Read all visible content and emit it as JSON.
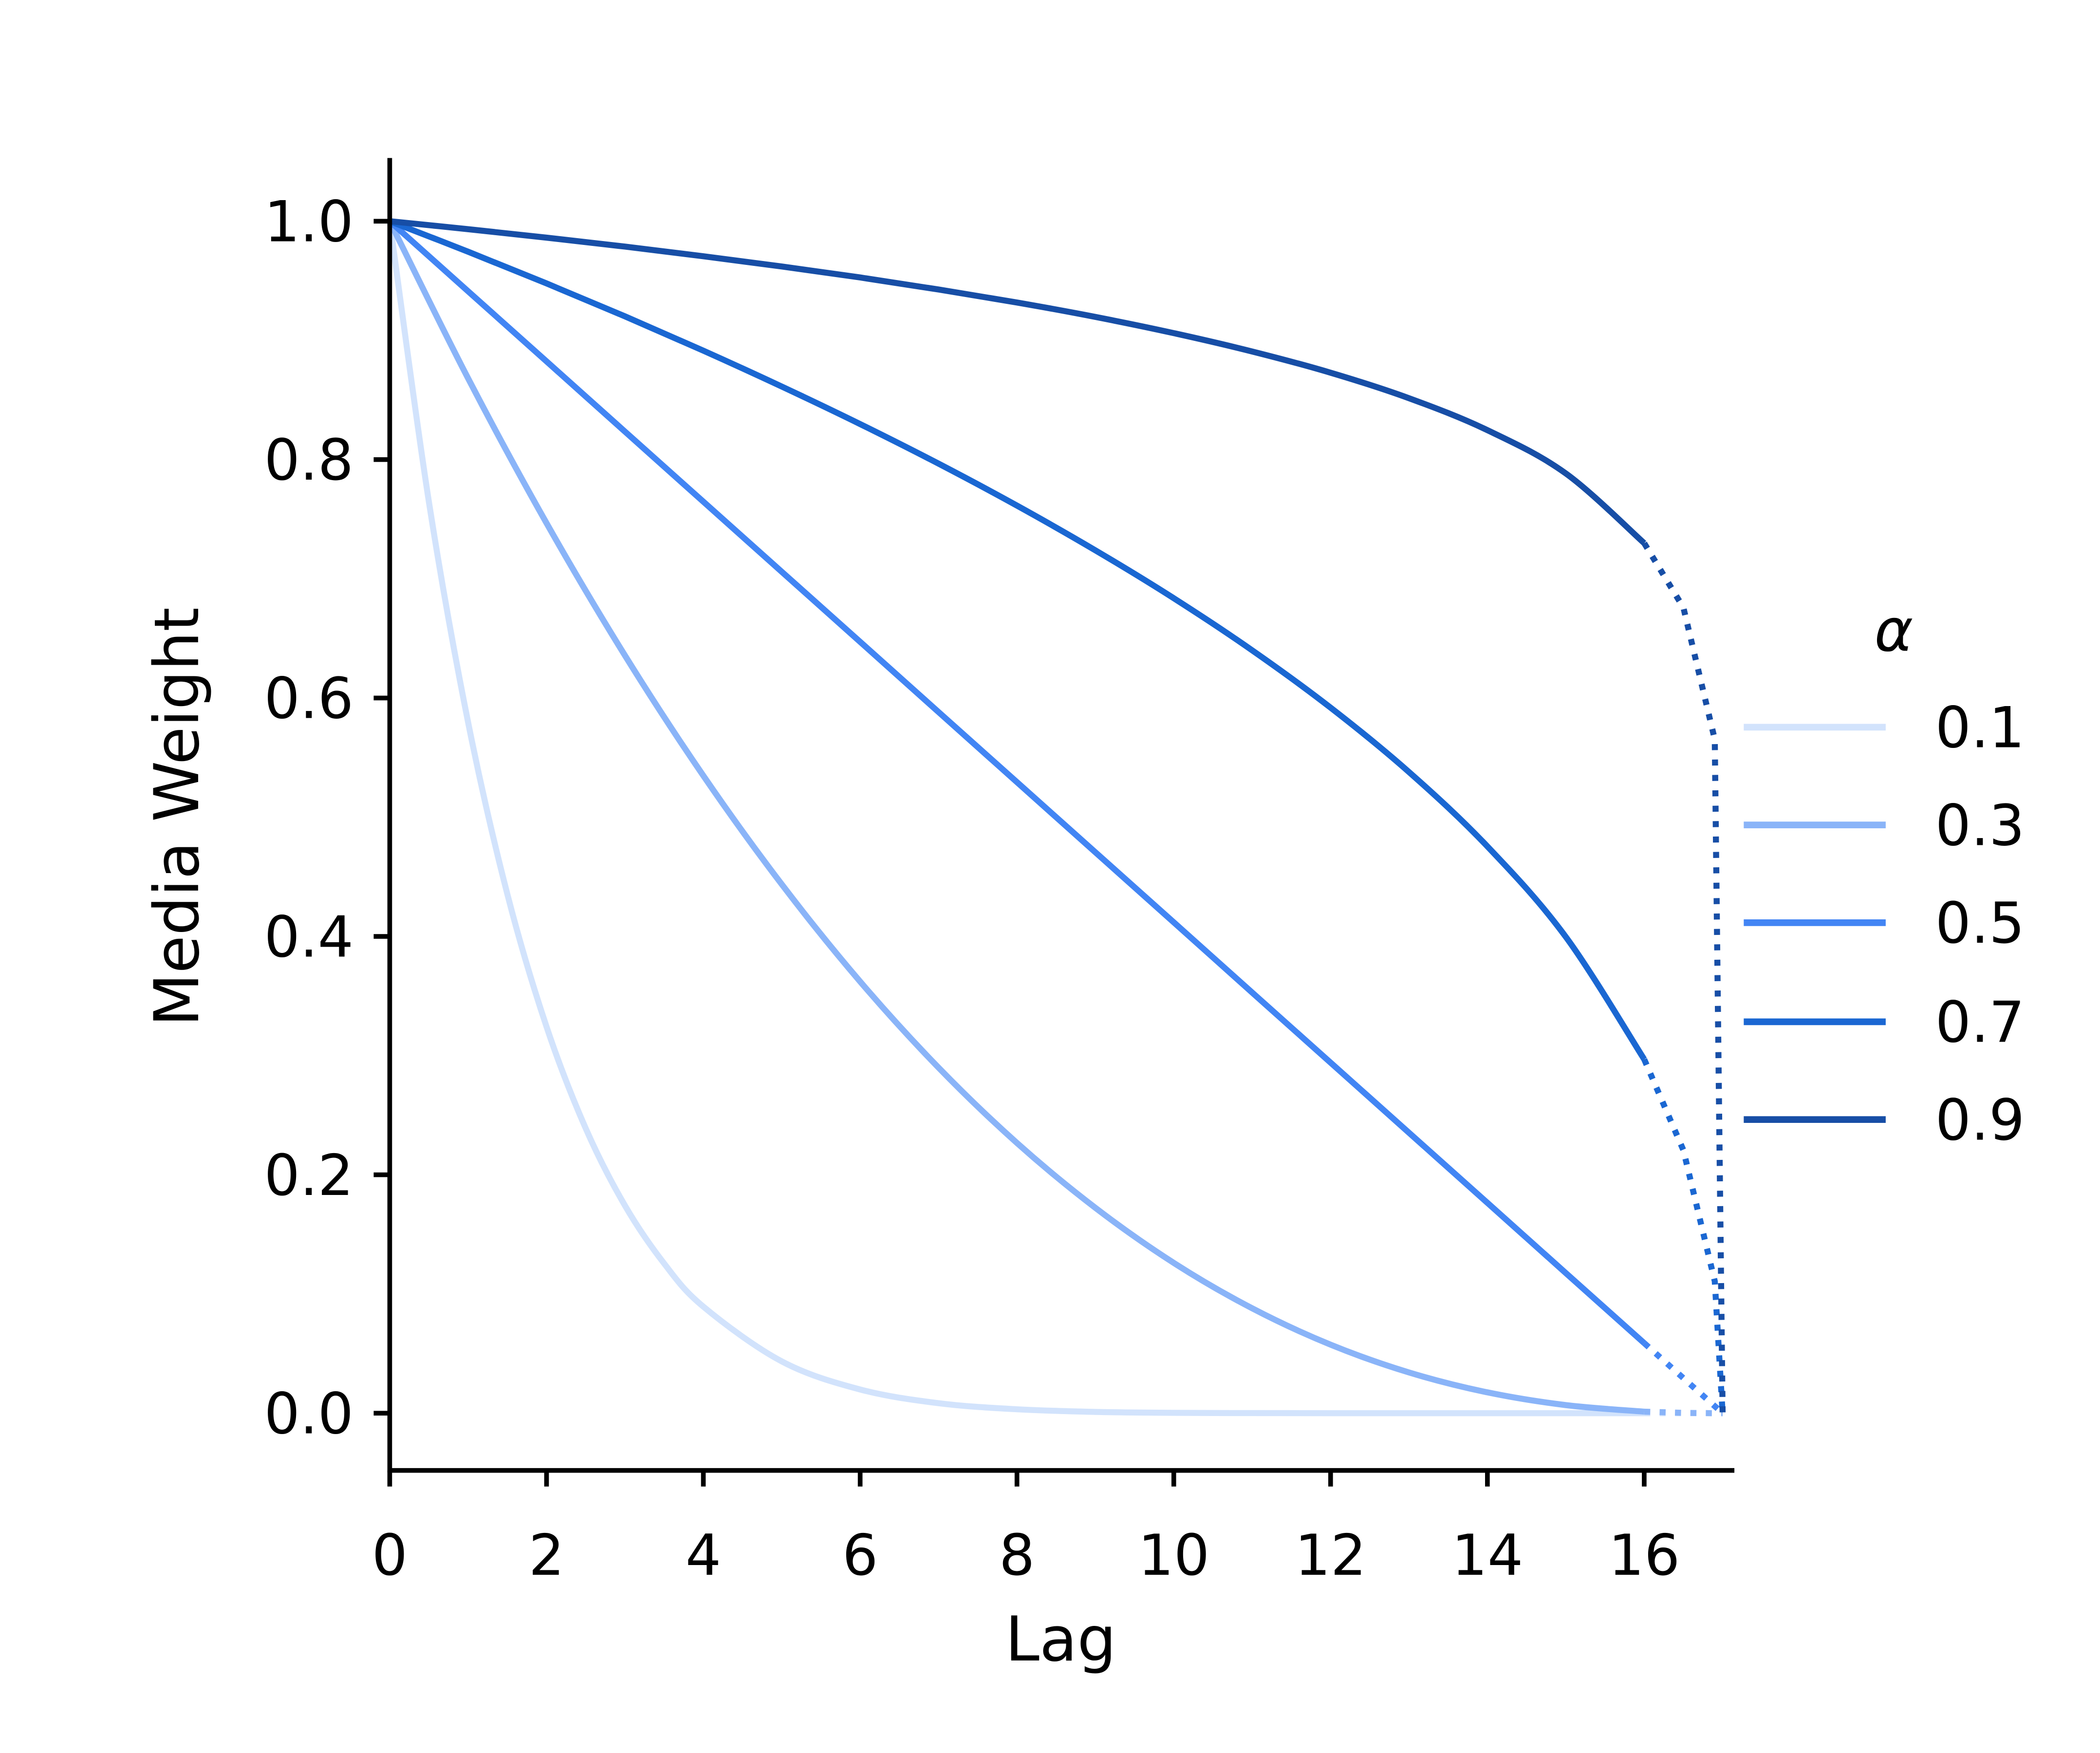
{
  "chart_data": {
    "type": "line",
    "title": "",
    "xlabel": "Lag",
    "ylabel": "Media Weight",
    "xlim": [
      0,
      17.15
    ],
    "ylim": [
      -0.048,
      1.053
    ],
    "xticks": [
      0,
      2,
      4,
      6,
      8,
      10,
      12,
      14,
      16
    ],
    "xtick_labels": [
      "0",
      "2",
      "4",
      "6",
      "8",
      "10",
      "12",
      "14",
      "16"
    ],
    "yticks": [
      0.0,
      0.2,
      0.4,
      0.6,
      0.8,
      1.0
    ],
    "ytick_labels": [
      "0.0",
      "0.2",
      "0.4",
      "0.6",
      "0.8",
      "1.0"
    ],
    "grid": false,
    "solid_until_lag": 16,
    "legend": {
      "title": "α",
      "placement": "right"
    },
    "series": [
      {
        "name": "0.1",
        "color": "#d2e3fc",
        "points": [
          [
            0,
            1
          ],
          [
            0.5,
            0.7644
          ],
          [
            1,
            0.5795
          ],
          [
            1.5,
            0.4355
          ],
          [
            2,
            0.3242
          ],
          [
            2.5,
            0.2389
          ],
          [
            3,
            0.1742
          ],
          [
            3.5,
            0.1256
          ],
          [
            4,
            0.0894
          ],
          [
            5,
            0.0435
          ],
          [
            6,
            0.0199
          ],
          [
            7,
            0.0084
          ],
          [
            8,
            0.0033
          ],
          [
            9,
            0.0011
          ],
          [
            10,
            0.0003
          ],
          [
            11,
            0.0001
          ],
          [
            12,
            0
          ],
          [
            13,
            0
          ],
          [
            14,
            0
          ],
          [
            15,
            0
          ],
          [
            16,
            0
          ],
          [
            16.5,
            0
          ],
          [
            16.9,
            0
          ],
          [
            17,
            0
          ]
        ]
      },
      {
        "name": "0.3",
        "color": "#8ab4f8",
        "points": [
          [
            0,
            1
          ],
          [
            1,
            0.8681
          ],
          [
            2,
            0.7467
          ],
          [
            3,
            0.6357
          ],
          [
            4,
            0.5348
          ],
          [
            5,
            0.4437
          ],
          [
            6,
            0.3621
          ],
          [
            7,
            0.2899
          ],
          [
            8,
            0.2267
          ],
          [
            9,
            0.1723
          ],
          [
            10,
            0.1261
          ],
          [
            11,
            0.088
          ],
          [
            12,
            0.0575
          ],
          [
            13,
            0.0342
          ],
          [
            14,
            0.0175
          ],
          [
            15,
            0.0068
          ],
          [
            16,
            0.0013
          ],
          [
            16.5,
            0.0003
          ],
          [
            16.9,
            0
          ],
          [
            17,
            0
          ]
        ]
      },
      {
        "name": "0.5",
        "color": "#4285f4",
        "points": [
          [
            0,
            1
          ],
          [
            1,
            0.9412
          ],
          [
            2,
            0.8824
          ],
          [
            3,
            0.8235
          ],
          [
            4,
            0.7647
          ],
          [
            5,
            0.7059
          ],
          [
            6,
            0.6471
          ],
          [
            7,
            0.5882
          ],
          [
            8,
            0.5294
          ],
          [
            9,
            0.4706
          ],
          [
            10,
            0.4118
          ],
          [
            11,
            0.3529
          ],
          [
            12,
            0.2941
          ],
          [
            13,
            0.2353
          ],
          [
            14,
            0.1765
          ],
          [
            15,
            0.1176
          ],
          [
            16,
            0.0588
          ],
          [
            16.5,
            0.0294
          ],
          [
            16.9,
            0.0059
          ],
          [
            17,
            0
          ]
        ]
      },
      {
        "name": "0.7",
        "color": "#1a67d2",
        "points": [
          [
            0,
            1
          ],
          [
            1,
            0.9744
          ],
          [
            2,
            0.9478
          ],
          [
            3,
            0.9202
          ],
          [
            4,
            0.8914
          ],
          [
            5,
            0.8613
          ],
          [
            6,
            0.8298
          ],
          [
            7,
            0.7966
          ],
          [
            8,
            0.7614
          ],
          [
            9,
            0.7239
          ],
          [
            10,
            0.6837
          ],
          [
            11,
            0.64
          ],
          [
            12,
            0.5919
          ],
          [
            13,
            0.5379
          ],
          [
            14,
            0.4755
          ],
          [
            15,
            0.3996
          ],
          [
            16,
            0.2969
          ],
          [
            16.5,
            0.2206
          ],
          [
            16.9,
            0.1107
          ],
          [
            17,
            0
          ]
        ]
      },
      {
        "name": "0.9",
        "color": "#174ea6",
        "points": [
          [
            0,
            1
          ],
          [
            1,
            0.9933
          ],
          [
            2,
            0.9862
          ],
          [
            3,
            0.9787
          ],
          [
            4,
            0.9706
          ],
          [
            5,
            0.962
          ],
          [
            6,
            0.9528
          ],
          [
            7,
            0.9427
          ],
          [
            8,
            0.9318
          ],
          [
            9,
            0.9197
          ],
          [
            10,
            0.9061
          ],
          [
            11,
            0.8907
          ],
          [
            12,
            0.8729
          ],
          [
            13,
            0.8515
          ],
          [
            14,
            0.8247
          ],
          [
            15,
            0.7884
          ],
          [
            16,
            0.7299
          ],
          [
            16.5,
            0.6758
          ],
          [
            16.9,
            0.5652
          ],
          [
            17,
            0
          ]
        ]
      }
    ]
  }
}
